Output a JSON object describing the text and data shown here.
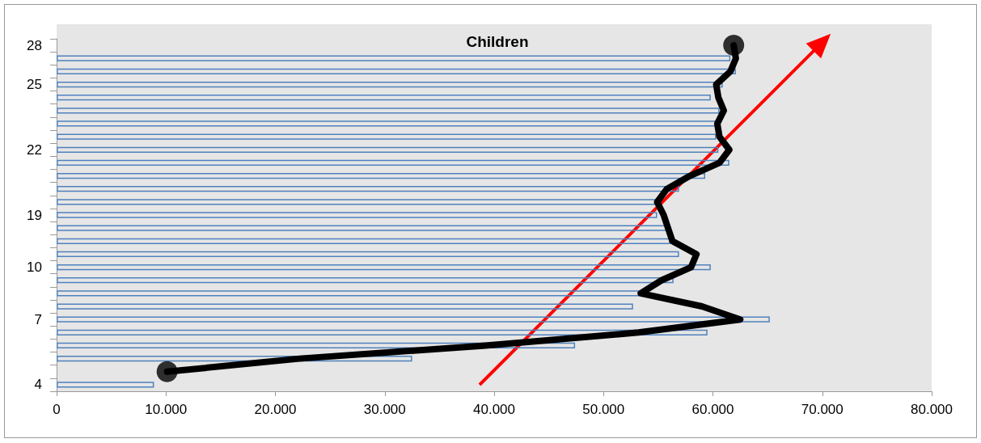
{
  "chart_data": {
    "type": "bar",
    "orientation": "horizontal",
    "title": "Children",
    "categories": [
      "28",
      null,
      null,
      "25",
      null,
      null,
      null,
      null,
      "22",
      null,
      null,
      null,
      null,
      "19",
      null,
      null,
      null,
      "10",
      null,
      null,
      null,
      "7",
      null,
      null,
      null,
      null,
      "4"
    ],
    "series": [
      {
        "color": "#4f81bd",
        "values": [
          null,
          61600,
          62100,
          60900,
          59800,
          60600,
          60500,
          60300,
          60500,
          61500,
          59300,
          56900,
          54800,
          54900,
          56000,
          56100,
          56900,
          59800,
          56400,
          53500,
          52700,
          65200,
          59500,
          47400,
          32500,
          null,
          8900
        ]
      },
      {
        "type": "scatter",
        "color": "#000000",
        "marker": "circle",
        "values": [
          61900,
          null,
          null,
          null,
          null,
          null,
          null,
          null,
          null,
          null,
          null,
          null,
          null,
          null,
          null,
          null,
          null,
          null,
          null,
          null,
          null,
          null,
          null,
          null,
          null,
          10100,
          null
        ]
      },
      {
        "type": "line",
        "color": "#000000",
        "marker": "none",
        "values": [
          61900,
          62100,
          61600,
          60300,
          60500,
          61000,
          60400,
          60600,
          61500,
          60600,
          57900,
          55800,
          54900,
          55500,
          55900,
          56300,
          58500,
          58000,
          55300,
          53400,
          59000,
          62500,
          53200,
          39200,
          22200,
          10100,
          null
        ]
      }
    ],
    "xlim": [
      0,
      80000
    ],
    "xticks": [
      0,
      {
        "value": 10000,
        "label": "10.000"
      },
      {
        "value": 20000,
        "label": "20.000"
      },
      {
        "value": 30000,
        "label": "30.000"
      },
      {
        "value": 40000,
        "label": "40.000"
      },
      {
        "value": 50000,
        "label": "50.000"
      },
      {
        "value": 60000,
        "label": "60.000"
      },
      {
        "value": 70000,
        "label": "70.000"
      },
      {
        "value": 80000,
        "label": "80.000"
      }
    ],
    "grid": false
  }
}
